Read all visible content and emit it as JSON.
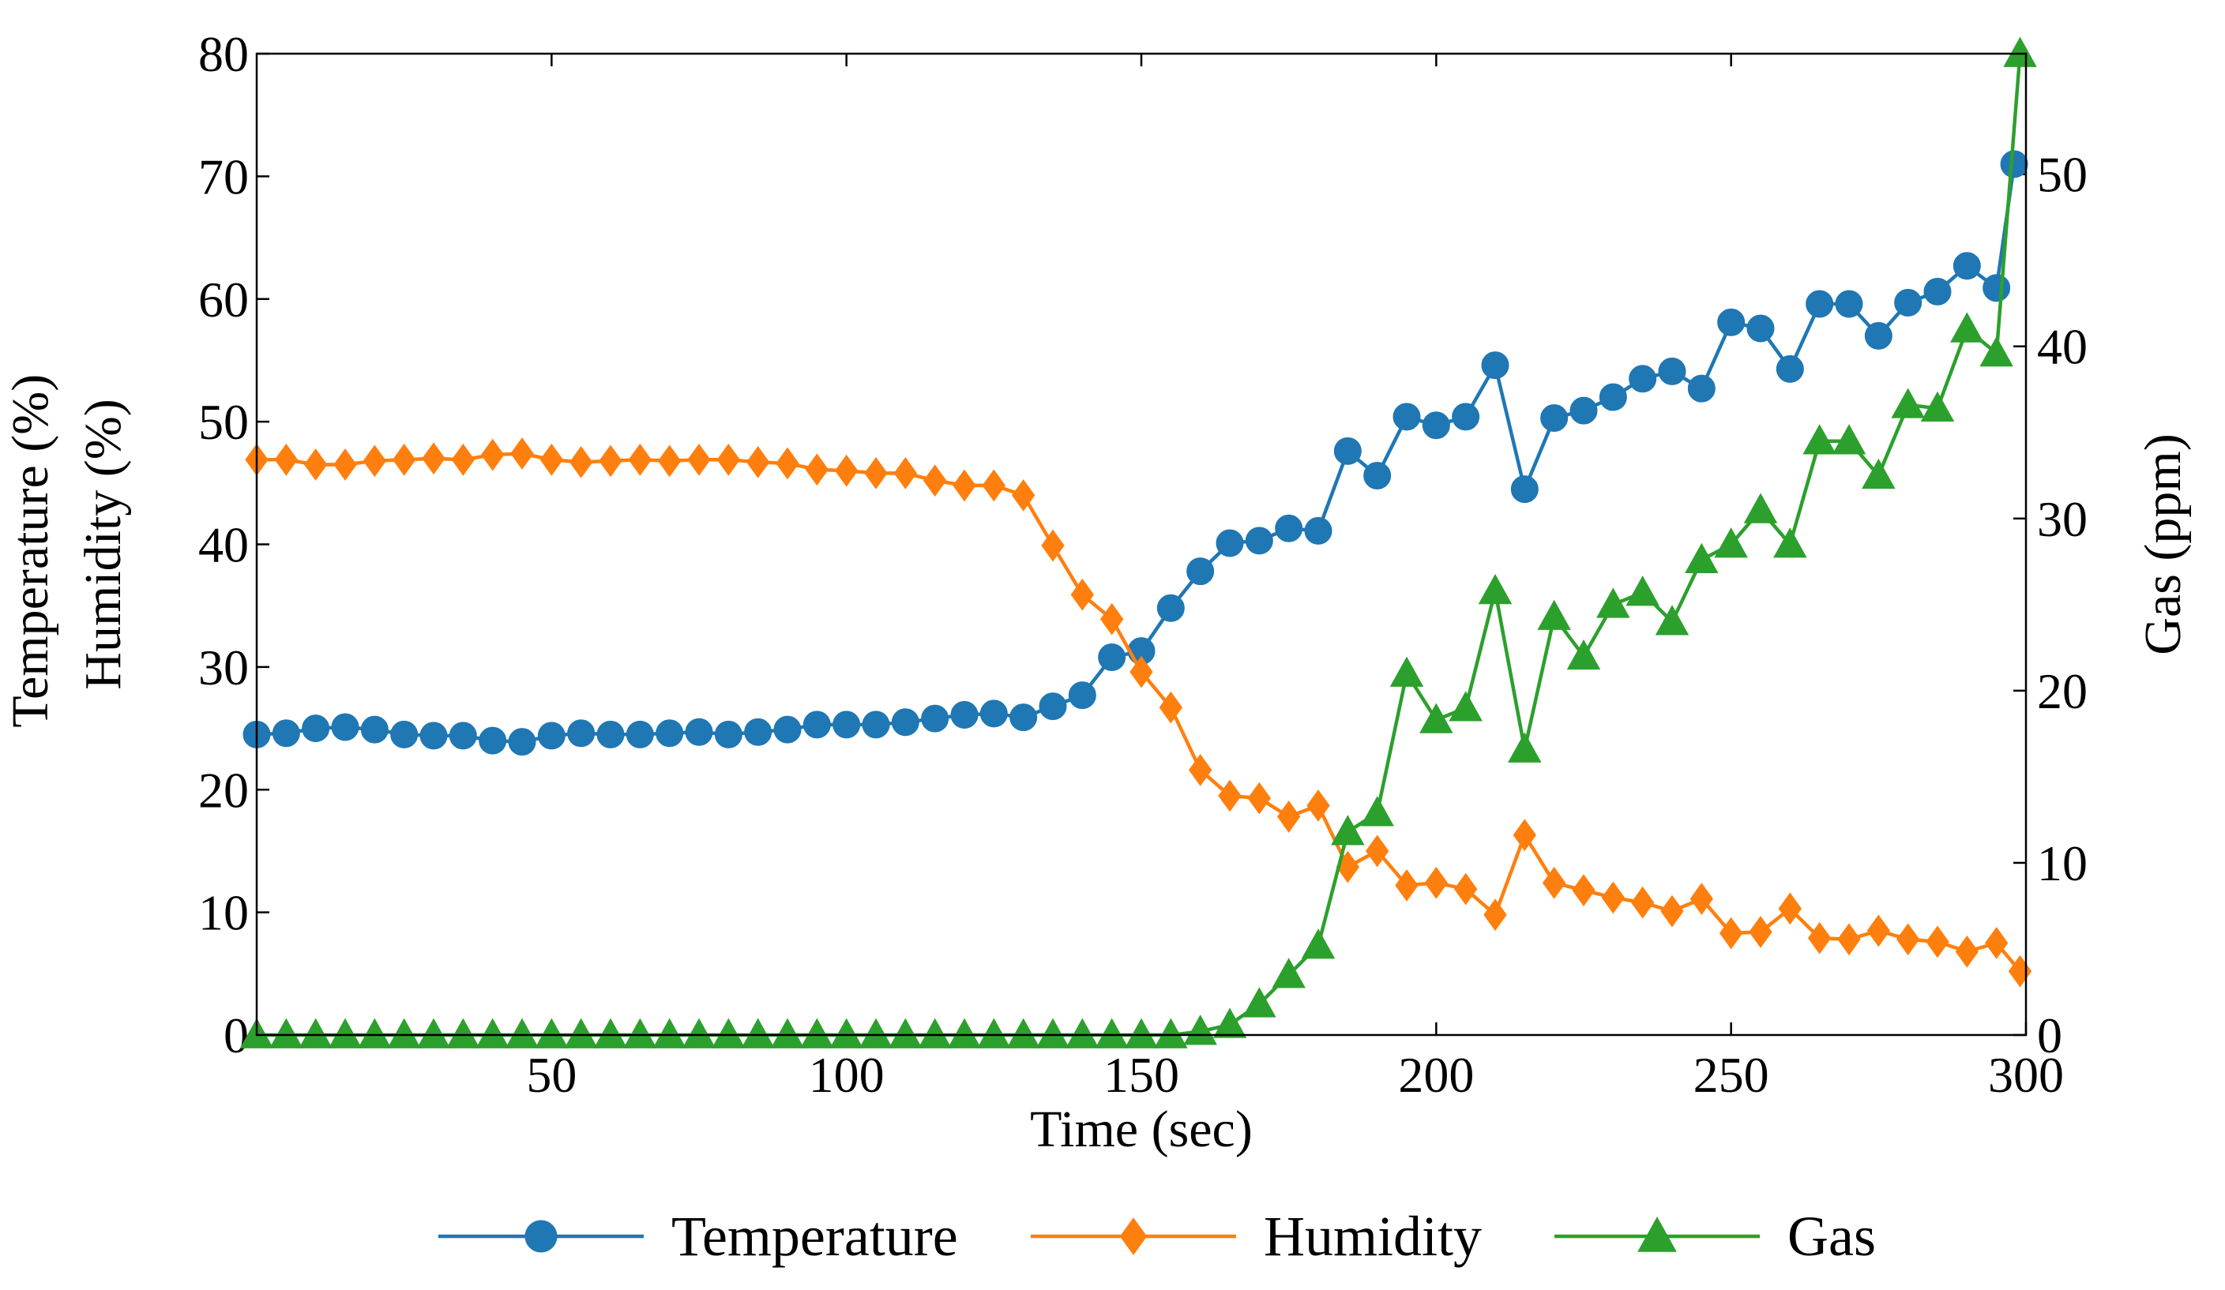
{
  "chart_data": {
    "type": "line",
    "title": "",
    "xlabel": "Time (sec)",
    "ylabel_left_lines": [
      "Temperature (%)",
      "Humidity (%)"
    ],
    "ylabel_right": "Gas (ppm)",
    "xlim": [
      0,
      300
    ],
    "ylim_left": [
      0,
      80
    ],
    "ylim_right": [
      0,
      57
    ],
    "grid": false,
    "legend_position": "bottom-center",
    "x_ticks": [
      50,
      100,
      150,
      200,
      250,
      300
    ],
    "x_tick_labels": [
      "50",
      "100",
      "150",
      "200",
      "250",
      "300"
    ],
    "y_left_ticks": [
      0,
      10,
      20,
      30,
      40,
      50,
      60,
      70,
      80
    ],
    "y_left_tick_labels": [
      "0",
      "10",
      "20",
      "30",
      "40",
      "50",
      "60",
      "70",
      "80"
    ],
    "y_right_ticks": [
      0,
      10,
      20,
      30,
      40,
      50
    ],
    "y_right_tick_labels": [
      "0",
      "10",
      "20",
      "30",
      "40",
      "50"
    ],
    "series": [
      {
        "name": "Temperature",
        "axis": "left",
        "color": "#1f77b4",
        "marker": "circle",
        "x": [
          0,
          5,
          10,
          15,
          20,
          25,
          30,
          35,
          40,
          45,
          50,
          55,
          60,
          65,
          70,
          75,
          80,
          85,
          90,
          95,
          100,
          105,
          110,
          115,
          120,
          125,
          130,
          135,
          140,
          145,
          150,
          155,
          160,
          165,
          170,
          175,
          180,
          185,
          190,
          195,
          200,
          205,
          210,
          215,
          220,
          225,
          230,
          235,
          240,
          245,
          250,
          255,
          260,
          265,
          270,
          275,
          280,
          285,
          290,
          295,
          298
        ],
        "values": [
          24.5,
          24.6,
          25.0,
          25.1,
          24.9,
          24.5,
          24.4,
          24.4,
          24.0,
          23.9,
          24.4,
          24.6,
          24.5,
          24.5,
          24.6,
          24.7,
          24.5,
          24.7,
          24.9,
          25.3,
          25.3,
          25.3,
          25.5,
          25.8,
          26.1,
          26.2,
          25.9,
          26.8,
          27.7,
          30.8,
          31.3,
          34.8,
          37.8,
          40.1,
          40.3,
          41.3,
          41.1,
          47.6,
          45.6,
          50.4,
          49.7,
          50.4,
          54.6,
          44.5,
          50.3,
          50.9,
          52.0,
          53.5,
          54.1,
          52.7,
          58.1,
          57.6,
          54.3,
          59.6,
          59.6,
          57.0,
          59.7,
          60.6,
          62.7,
          60.9,
          71.0
        ]
      },
      {
        "name": "Humidity",
        "axis": "left",
        "color": "#ff7f0e",
        "marker": "diamond",
        "x": [
          0,
          5,
          10,
          15,
          20,
          25,
          30,
          35,
          40,
          45,
          50,
          55,
          60,
          65,
          70,
          75,
          80,
          85,
          90,
          95,
          100,
          105,
          110,
          115,
          120,
          125,
          130,
          135,
          140,
          145,
          150,
          155,
          160,
          165,
          170,
          175,
          180,
          185,
          190,
          195,
          200,
          205,
          210,
          215,
          220,
          225,
          230,
          235,
          240,
          245,
          250,
          255,
          260,
          265,
          270,
          275,
          280,
          285,
          290,
          295,
          299
        ],
        "values": [
          46.9,
          46.9,
          46.5,
          46.5,
          46.8,
          46.9,
          47.0,
          46.9,
          47.3,
          47.4,
          46.9,
          46.7,
          46.8,
          46.9,
          46.8,
          46.9,
          46.9,
          46.7,
          46.6,
          46.1,
          46.0,
          45.8,
          45.8,
          45.2,
          44.8,
          44.8,
          44.0,
          39.9,
          35.9,
          33.9,
          29.6,
          26.7,
          21.6,
          19.5,
          19.3,
          17.8,
          18.7,
          13.7,
          15.0,
          12.2,
          12.4,
          11.9,
          9.8,
          16.3,
          12.4,
          11.8,
          11.2,
          10.8,
          10.1,
          11.1,
          8.3,
          8.4,
          10.3,
          7.9,
          7.8,
          8.5,
          7.8,
          7.6,
          6.8,
          7.5,
          5.2
        ]
      },
      {
        "name": "Gas",
        "axis": "right",
        "color": "#2ca02c",
        "marker": "triangle",
        "x": [
          0,
          5,
          10,
          15,
          20,
          25,
          30,
          35,
          40,
          45,
          50,
          55,
          60,
          65,
          70,
          75,
          80,
          85,
          90,
          95,
          100,
          105,
          110,
          115,
          120,
          125,
          130,
          135,
          140,
          145,
          150,
          155,
          160,
          165,
          170,
          175,
          180,
          185,
          190,
          195,
          200,
          205,
          210,
          215,
          220,
          225,
          230,
          235,
          240,
          245,
          250,
          255,
          260,
          265,
          270,
          275,
          280,
          285,
          290,
          295,
          299
        ],
        "values": [
          0,
          0,
          0,
          0,
          0,
          0,
          0,
          0,
          0,
          0,
          0,
          0,
          0,
          0,
          0,
          0,
          0,
          0,
          0,
          0,
          0,
          0,
          0,
          0,
          0,
          0,
          0,
          0,
          0,
          0,
          0,
          0,
          0.2,
          0.6,
          1.8,
          3.5,
          5.2,
          11.8,
          12.9,
          21.0,
          18.3,
          19.0,
          25.8,
          16.6,
          24.3,
          22.0,
          25.0,
          25.7,
          24.0,
          27.6,
          28.5,
          30.5,
          28.5,
          34.5,
          34.5,
          32.5,
          36.6,
          36.4,
          41.0,
          39.6,
          57.0
        ]
      }
    ]
  }
}
